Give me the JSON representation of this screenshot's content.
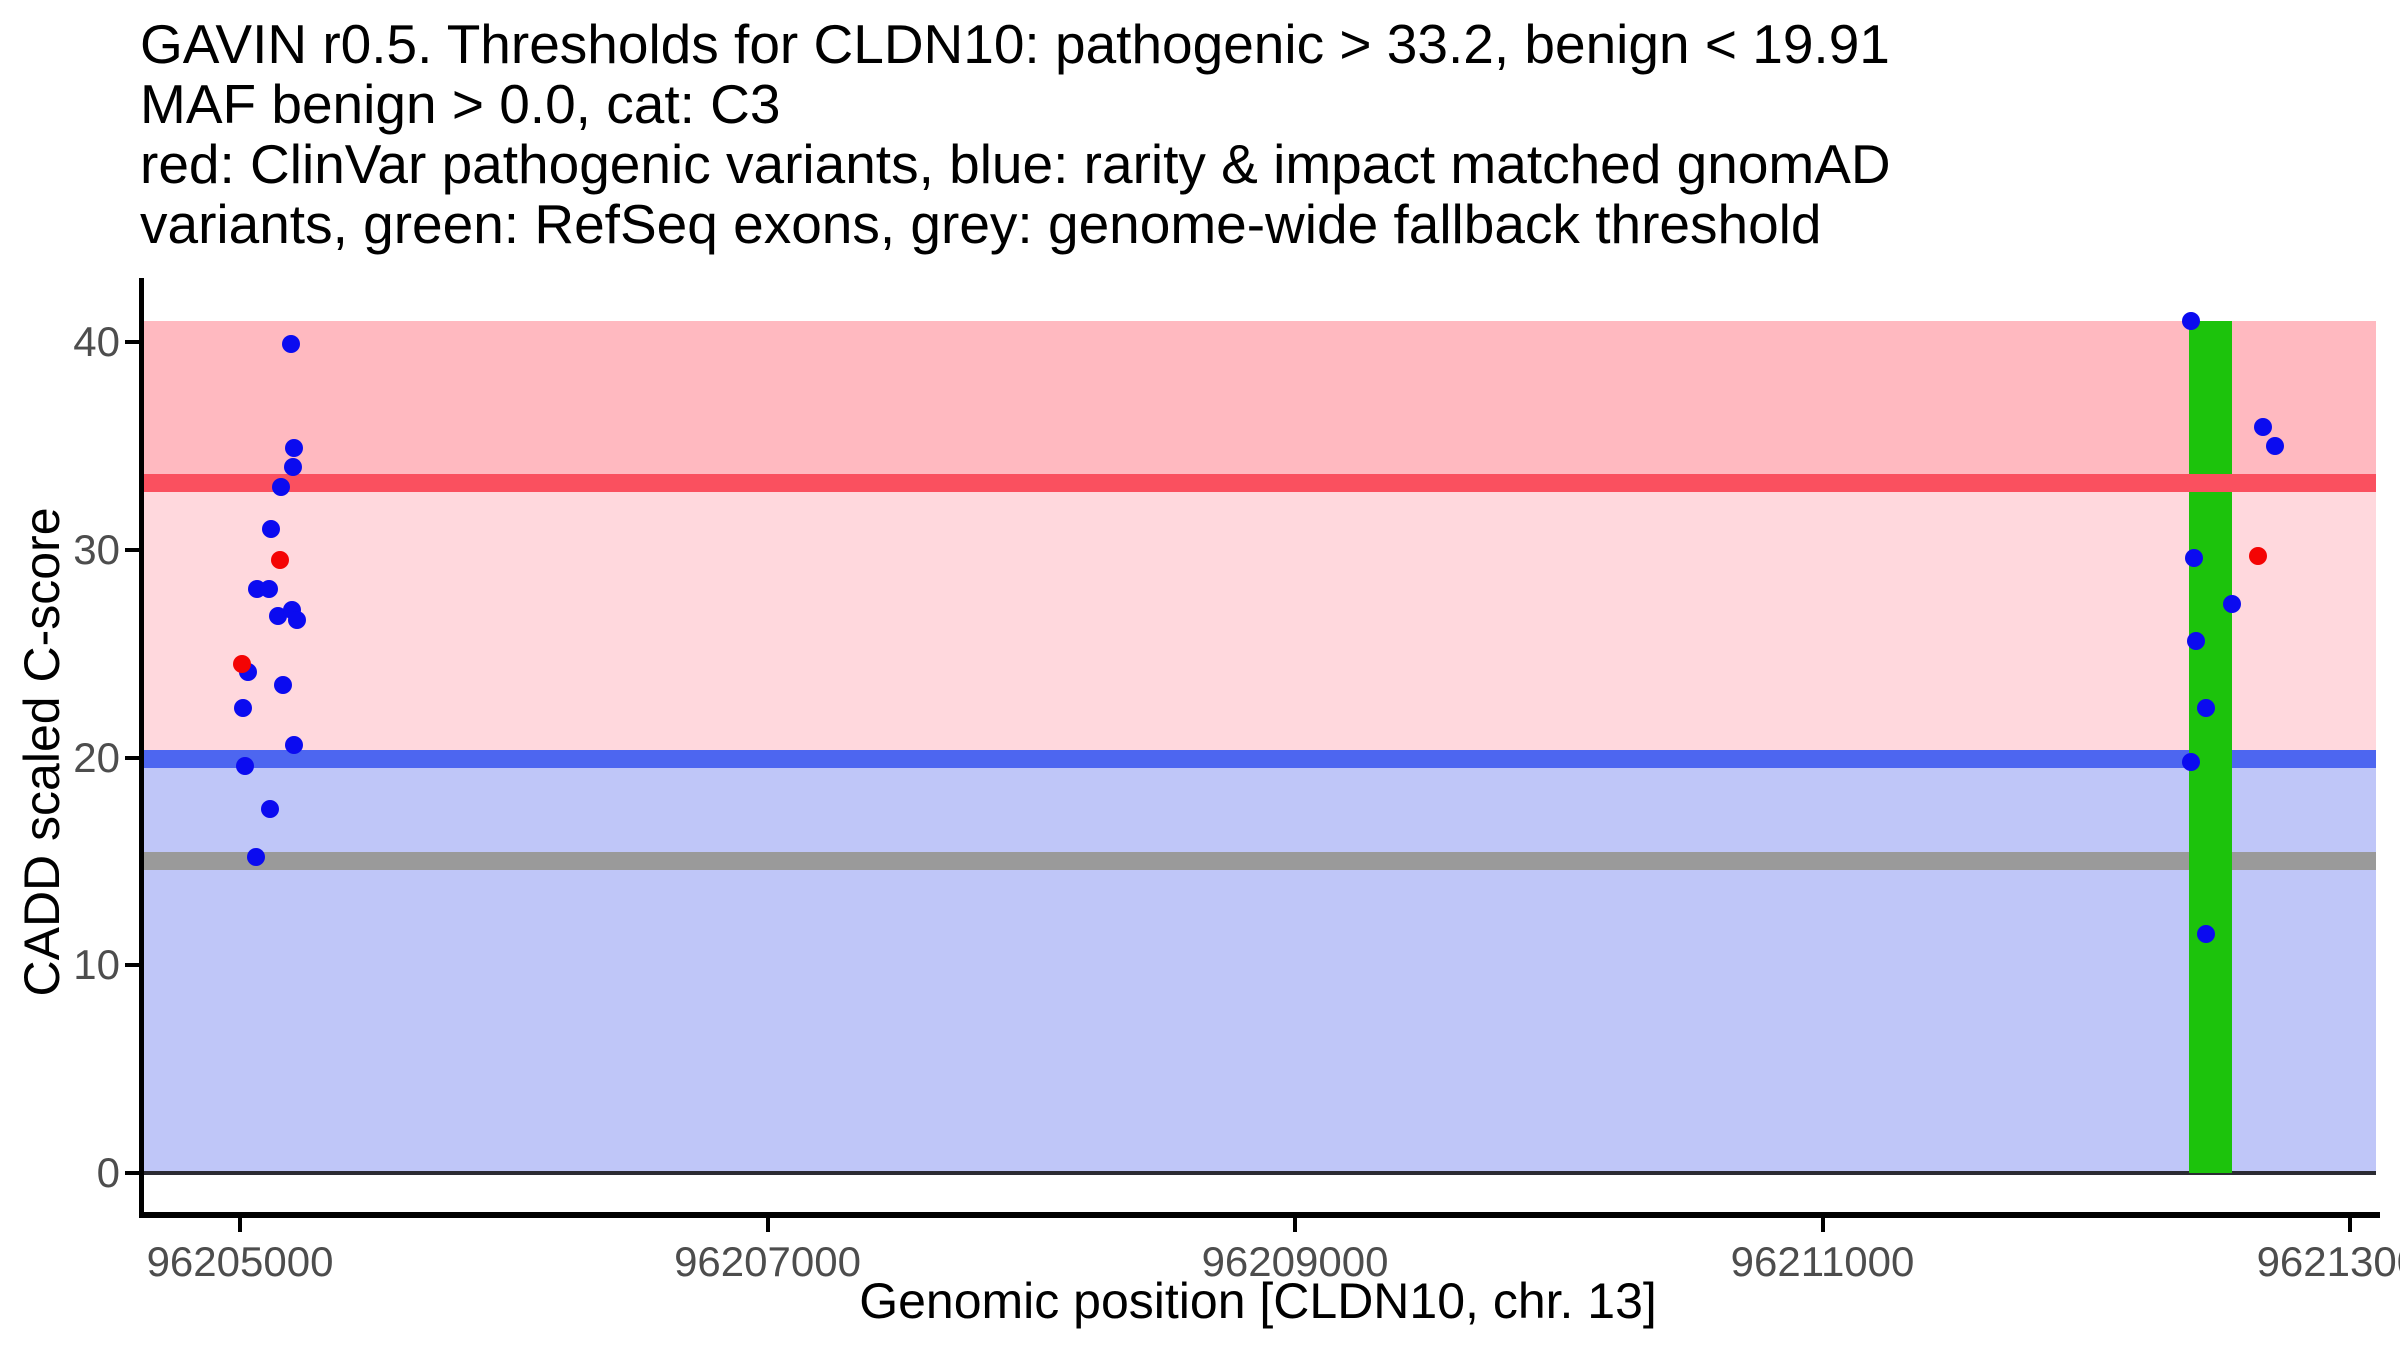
{
  "title_lines": [
    "GAVIN r0.5. Thresholds for CLDN10: pathogenic > 33.2, benign < 19.91",
    "MAF benign > 0.0, cat: C3",
    "red: ClinVar pathogenic variants, blue: rarity & impact matched gnomAD",
    "variants, green: RefSeq exons, grey: genome-wide fallback threshold"
  ],
  "colors": {
    "pathogenic_band": "#ffb9c0",
    "vous_band": "#ffd8dd",
    "benign_band": "#bfc6f8",
    "pathogenic_line": "#fa505f",
    "benign_line": "#4d66f0",
    "fallback_line": "#9a9a9a",
    "exon_bar": "#1cc30c",
    "clinvar_dot": "#f40404",
    "gnomad_dot": "#0b0bf0",
    "baseline": "#2b2b33",
    "axis": "#000000",
    "tick_label": "#4d4d4d"
  },
  "chart_data": {
    "type": "scatter",
    "title": "GAVIN r0.5. Thresholds for CLDN10: pathogenic > 33.2, benign < 19.91 MAF benign > 0.0, cat: C3 red: ClinVar pathogenic variants, blue: rarity & impact matched gnomAD variants, green: RefSeq exons, grey: genome-wide fallback threshold",
    "xlabel": "Genomic position [CLDN10, chr. 13]",
    "ylabel": "CADD scaled C-score",
    "x_ticks": [
      96205000,
      96207000,
      96209000,
      96211000,
      96213000
    ],
    "x_tick_labels": [
      "96205000",
      "96207000",
      "96209000",
      "96211000",
      "96213000"
    ],
    "y_ticks": [
      0,
      10,
      20,
      30,
      40
    ],
    "y_tick_labels": [
      "0",
      "10",
      "20",
      "30",
      "40"
    ],
    "xlim": [
      96204630,
      96213100
    ],
    "ylim": [
      0,
      41
    ],
    "grid": false,
    "legend": "none",
    "thresholds": {
      "pathogenic": 33.2,
      "benign": 19.91,
      "genome_wide_fallback": 15.0
    },
    "exon": {
      "start": 96212390,
      "end": 96212553
    },
    "series": [
      {
        "name": "rarity & impact matched gnomAD variants",
        "color_key": "gnomad_dot",
        "points": [
          [
            96205193,
            39.9
          ],
          [
            96205205,
            34.9
          ],
          [
            96205201,
            34.0
          ],
          [
            96205155,
            33.0
          ],
          [
            96205118,
            31.0
          ],
          [
            96205064,
            28.1
          ],
          [
            96205110,
            28.1
          ],
          [
            96205144,
            26.8
          ],
          [
            96205197,
            27.1
          ],
          [
            96205216,
            26.6
          ],
          [
            96205030,
            24.1
          ],
          [
            96205163,
            23.5
          ],
          [
            96205011,
            22.4
          ],
          [
            96205205,
            20.6
          ],
          [
            96205019,
            19.6
          ],
          [
            96205114,
            17.5
          ],
          [
            96205061,
            15.2
          ],
          [
            96212397,
            41.0
          ],
          [
            96212670,
            35.9
          ],
          [
            96212715,
            35.0
          ],
          [
            96212409,
            29.6
          ],
          [
            96212552,
            27.4
          ],
          [
            96212416,
            25.6
          ],
          [
            96212454,
            22.4
          ],
          [
            96212397,
            19.8
          ],
          [
            96212454,
            11.5
          ]
        ]
      },
      {
        "name": "ClinVar pathogenic variants",
        "color_key": "clinvar_dot",
        "points": [
          [
            96205152,
            29.5
          ],
          [
            96205008,
            24.5
          ],
          [
            96212651,
            29.7
          ]
        ]
      }
    ]
  }
}
